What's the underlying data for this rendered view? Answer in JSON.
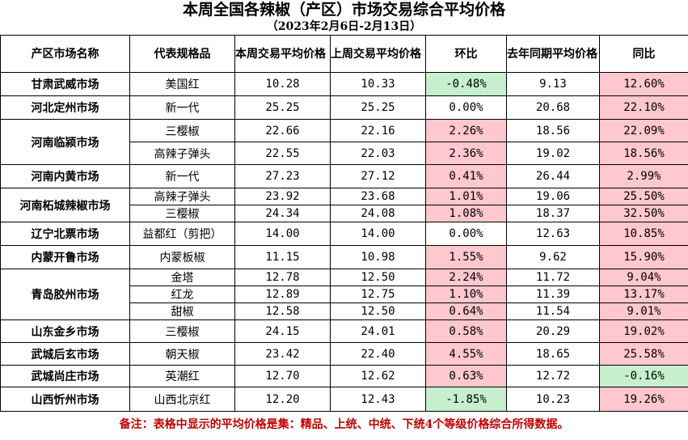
{
  "title": "本周全国各辣椒（产区）市场交易综合平均价格",
  "subtitle": "（2023年2月6日-2月13日）",
  "headers": {
    "market": "产区市场名称",
    "variety": "代表规格品",
    "this_week": "本周交易平均价格（元",
    "last_week": "上周交易平均价格（元",
    "mom": "环比",
    "last_year": "去年同期平均价格（元",
    "yoy": "同比"
  },
  "rows": [
    {
      "market": "甘肃武威市场",
      "variety": "美国红",
      "this_week": "10.28",
      "last_week": "10.33",
      "mom": "-0.48%",
      "mom_color": "green",
      "last_year": "9.13",
      "yoy": "12.60%",
      "yoy_color": "pink"
    },
    {
      "market": "河北定州市场",
      "variety": "新一代",
      "this_week": "25.25",
      "last_week": "25.25",
      "mom": "0.00%",
      "mom_color": "none",
      "last_year": "20.68",
      "yoy": "22.10%",
      "yoy_color": "pink"
    },
    {
      "market": "河南临颍市场",
      "variety": "三樱椒",
      "this_week": "22.66",
      "last_week": "22.16",
      "mom": "2.26%",
      "mom_color": "pink",
      "last_year": "18.56",
      "yoy": "22.09%",
      "yoy_color": "pink"
    },
    {
      "market": "",
      "variety": "高辣子弹头",
      "this_week": "22.55",
      "last_week": "22.03",
      "mom": "2.36%",
      "mom_color": "pink",
      "last_year": "19.02",
      "yoy": "18.56%",
      "yoy_color": "pink"
    },
    {
      "market": "河南内黄市场",
      "variety": "新一代",
      "this_week": "27.23",
      "last_week": "27.12",
      "mom": "0.41%",
      "mom_color": "pink",
      "last_year": "26.44",
      "yoy": "2.99%",
      "yoy_color": "pink"
    },
    {
      "market": "河南柘城辣椒市场",
      "variety": "高辣子弹头",
      "this_week": "23.92",
      "last_week": "23.68",
      "mom": "1.01%",
      "mom_color": "pink",
      "last_year": "19.06",
      "yoy": "25.50%",
      "yoy_color": "pink"
    },
    {
      "market": "",
      "variety": "三樱椒",
      "this_week": "24.34",
      "last_week": "24.08",
      "mom": "1.08%",
      "mom_color": "pink",
      "last_year": "18.37",
      "yoy": "32.50%",
      "yoy_color": "pink"
    },
    {
      "market": "辽宁北票市场",
      "variety": "益都红（剪把）",
      "this_week": "14.00",
      "last_week": "14.00",
      "mom": "0.00%",
      "mom_color": "none",
      "last_year": "12.63",
      "yoy": "10.85%",
      "yoy_color": "pink"
    },
    {
      "market": "内蒙开鲁市场",
      "variety": "内蒙板椒",
      "this_week": "11.15",
      "last_week": "10.98",
      "mom": "1.55%",
      "mom_color": "pink",
      "last_year": "9.62",
      "yoy": "15.90%",
      "yoy_color": "pink"
    },
    {
      "market": "青岛胶州市场",
      "variety": "金塔",
      "this_week": "12.78",
      "last_week": "12.50",
      "mom": "2.24%",
      "mom_color": "pink",
      "last_year": "11.72",
      "yoy": "9.04%",
      "yoy_color": "pink"
    },
    {
      "market": "",
      "variety": "红龙",
      "this_week": "12.89",
      "last_week": "12.75",
      "mom": "1.10%",
      "mom_color": "pink",
      "last_year": "11.39",
      "yoy": "13.17%",
      "yoy_color": "pink"
    },
    {
      "market": "",
      "variety": "甜椒",
      "this_week": "12.58",
      "last_week": "12.50",
      "mom": "0.64%",
      "mom_color": "pink",
      "last_year": "11.54",
      "yoy": "9.01%",
      "yoy_color": "pink"
    },
    {
      "market": "山东金乡市场",
      "variety": "三樱椒",
      "this_week": "24.15",
      "last_week": "24.01",
      "mom": "0.58%",
      "mom_color": "pink",
      "last_year": "20.29",
      "yoy": "19.02%",
      "yoy_color": "pink"
    },
    {
      "market": "武城后玄市场",
      "variety": "朝天椒",
      "this_week": "23.42",
      "last_week": "22.40",
      "mom": "4.55%",
      "mom_color": "pink",
      "last_year": "18.65",
      "yoy": "25.58%",
      "yoy_color": "pink"
    },
    {
      "market": "武城尚庄市场",
      "variety": "英潮红",
      "this_week": "12.70",
      "last_week": "12.62",
      "mom": "0.63%",
      "mom_color": "pink",
      "last_year": "12.72",
      "yoy": "-0.16%",
      "yoy_color": "green"
    },
    {
      "market": "山西忻州市场",
      "variety": "山西北京红",
      "this_week": "12.20",
      "last_week": "12.43",
      "mom": "-1.85%",
      "mom_color": "green",
      "last_year": "10.23",
      "yoy": "19.26%",
      "yoy_color": "pink"
    }
  ],
  "note": "备注：表格中显示的平均价格是集：精品、上统、中统、下统4个等级价格综合所得数据。"
}
